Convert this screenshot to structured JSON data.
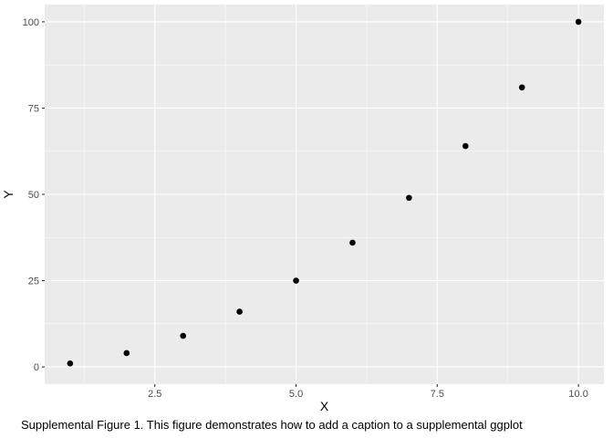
{
  "chart_data": {
    "type": "scatter",
    "x": [
      1,
      2,
      3,
      4,
      5,
      6,
      7,
      8,
      9,
      10
    ],
    "y": [
      1,
      4,
      9,
      16,
      25,
      36,
      49,
      64,
      81,
      100
    ],
    "xlabel": "X",
    "ylabel": "Y",
    "xlim": [
      0.55,
      10.45
    ],
    "ylim": [
      -5,
      105
    ],
    "xticks": [
      2.5,
      5.0,
      7.5,
      10.0
    ],
    "xtick_labels": [
      "2.5",
      "5.0",
      "7.5",
      "10.0"
    ],
    "yticks": [
      0,
      25,
      50,
      75,
      100
    ],
    "ytick_labels": [
      "0",
      "25",
      "50",
      "75",
      "100"
    ],
    "grid": true,
    "caption": "Supplemental Figure 1. This figure demonstrates how to add a caption to a supplemental ggplot",
    "colors": {
      "panel_background": "#ebebeb",
      "grid": "#ffffff",
      "point": "#000000"
    }
  }
}
